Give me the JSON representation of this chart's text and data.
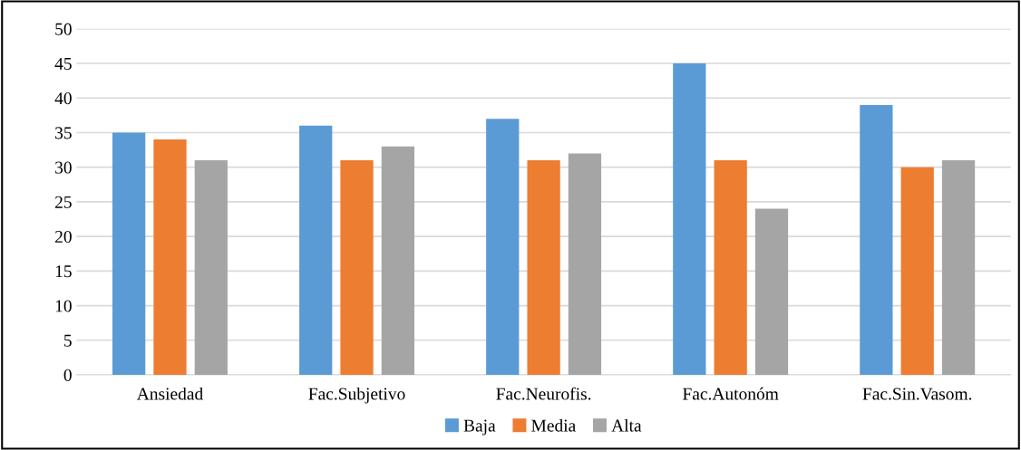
{
  "chart_data": {
    "type": "bar",
    "categories": [
      "Ansiedad",
      "Fac.Subjetivo",
      "Fac.Neurofis.",
      "Fac.Autonóm",
      "Fac.Sin.Vasom."
    ],
    "series": [
      {
        "name": "Baja",
        "color": "#5b9bd5",
        "values": [
          35,
          36,
          37,
          45,
          39
        ]
      },
      {
        "name": "Media",
        "color": "#ed7d31",
        "values": [
          34,
          31,
          31,
          31,
          30
        ]
      },
      {
        "name": "Alta",
        "color": "#a5a5a5",
        "values": [
          31,
          33,
          32,
          24,
          31
        ]
      }
    ],
    "ylim": [
      0,
      50
    ],
    "yticks": [
      0,
      5,
      10,
      15,
      20,
      25,
      30,
      35,
      40,
      45,
      50
    ],
    "grid": "y",
    "legend": "bottom"
  }
}
